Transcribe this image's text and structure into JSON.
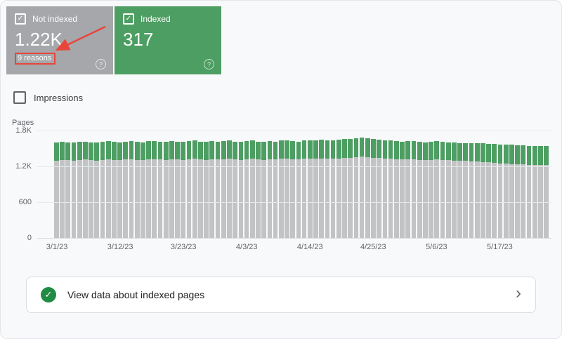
{
  "icons": {
    "check": "✓",
    "help": "?",
    "chevron": "›"
  },
  "colors": {
    "not_indexed_card": "#a5a7aa",
    "indexed_card": "#4d9e62",
    "not_indexed_bar": "#c1c3c5",
    "indexed_bar": "#4d9e62",
    "annotation_red": "#e8453c",
    "footer_check_green": "#1f8b43"
  },
  "cards": {
    "not_indexed": {
      "label": "Not indexed",
      "value": "1.22K",
      "reasons_label": "9 reasons",
      "checked": true
    },
    "indexed": {
      "label": "Indexed",
      "value": "317",
      "checked": true
    }
  },
  "impressions": {
    "label": "Impressions",
    "checked": false
  },
  "footer": {
    "label": "View data about indexed pages"
  },
  "chart_data": {
    "type": "bar",
    "stacked": true,
    "title": "",
    "ylabel": "Pages",
    "ylim": [
      0,
      1800
    ],
    "grid": true,
    "legend": "none",
    "y_ticks": [
      {
        "label": "1.8K",
        "value": 1800
      },
      {
        "label": "1.2K",
        "value": 1200
      },
      {
        "label": "600",
        "value": 600
      },
      {
        "label": "0",
        "value": 0
      }
    ],
    "x_unit": "day",
    "x_start": "3/1/23",
    "x_end": "5/25/23",
    "x_tick_labels": [
      "3/1/23",
      "3/12/23",
      "3/23/23",
      "4/3/23",
      "4/14/23",
      "4/25/23",
      "5/6/23",
      "5/17/23"
    ],
    "x_tick_indices": [
      0,
      11,
      22,
      33,
      44,
      55,
      66,
      77
    ],
    "series": [
      {
        "name": "Not indexed",
        "color": "#c1c3c5",
        "values": [
          1300,
          1310,
          1305,
          1300,
          1310,
          1315,
          1305,
          1300,
          1310,
          1315,
          1310,
          1305,
          1315,
          1320,
          1310,
          1305,
          1315,
          1320,
          1315,
          1310,
          1320,
          1315,
          1310,
          1320,
          1325,
          1315,
          1310,
          1320,
          1315,
          1320,
          1325,
          1315,
          1310,
          1320,
          1325,
          1315,
          1310,
          1320,
          1315,
          1325,
          1330,
          1320,
          1315,
          1325,
          1330,
          1325,
          1335,
          1330,
          1325,
          1335,
          1340,
          1345,
          1350,
          1360,
          1355,
          1345,
          1340,
          1330,
          1325,
          1320,
          1315,
          1320,
          1315,
          1310,
          1305,
          1310,
          1315,
          1310,
          1305,
          1300,
          1295,
          1290,
          1285,
          1280,
          1275,
          1270,
          1260,
          1250,
          1245,
          1240,
          1235,
          1230,
          1228,
          1225,
          1222,
          1220
        ]
      },
      {
        "name": "Indexed",
        "color": "#4d9e62",
        "values": [
          295,
          300,
          298,
          296,
          300,
          302,
          298,
          295,
          300,
          303,
          300,
          298,
          302,
          305,
          300,
          298,
          303,
          305,
          302,
          300,
          305,
          302,
          300,
          305,
          308,
          302,
          300,
          305,
          302,
          305,
          308,
          302,
          300,
          305,
          308,
          302,
          300,
          305,
          302,
          308,
          310,
          305,
          302,
          308,
          310,
          308,
          312,
          310,
          308,
          312,
          315,
          316,
          318,
          320,
          318,
          315,
          312,
          310,
          308,
          305,
          302,
          305,
          303,
          300,
          298,
          300,
          303,
          300,
          298,
          296,
          295,
          300,
          305,
          308,
          310,
          312,
          315,
          318,
          320,
          322,
          320,
          318,
          317,
          317,
          317,
          317
        ]
      }
    ]
  }
}
